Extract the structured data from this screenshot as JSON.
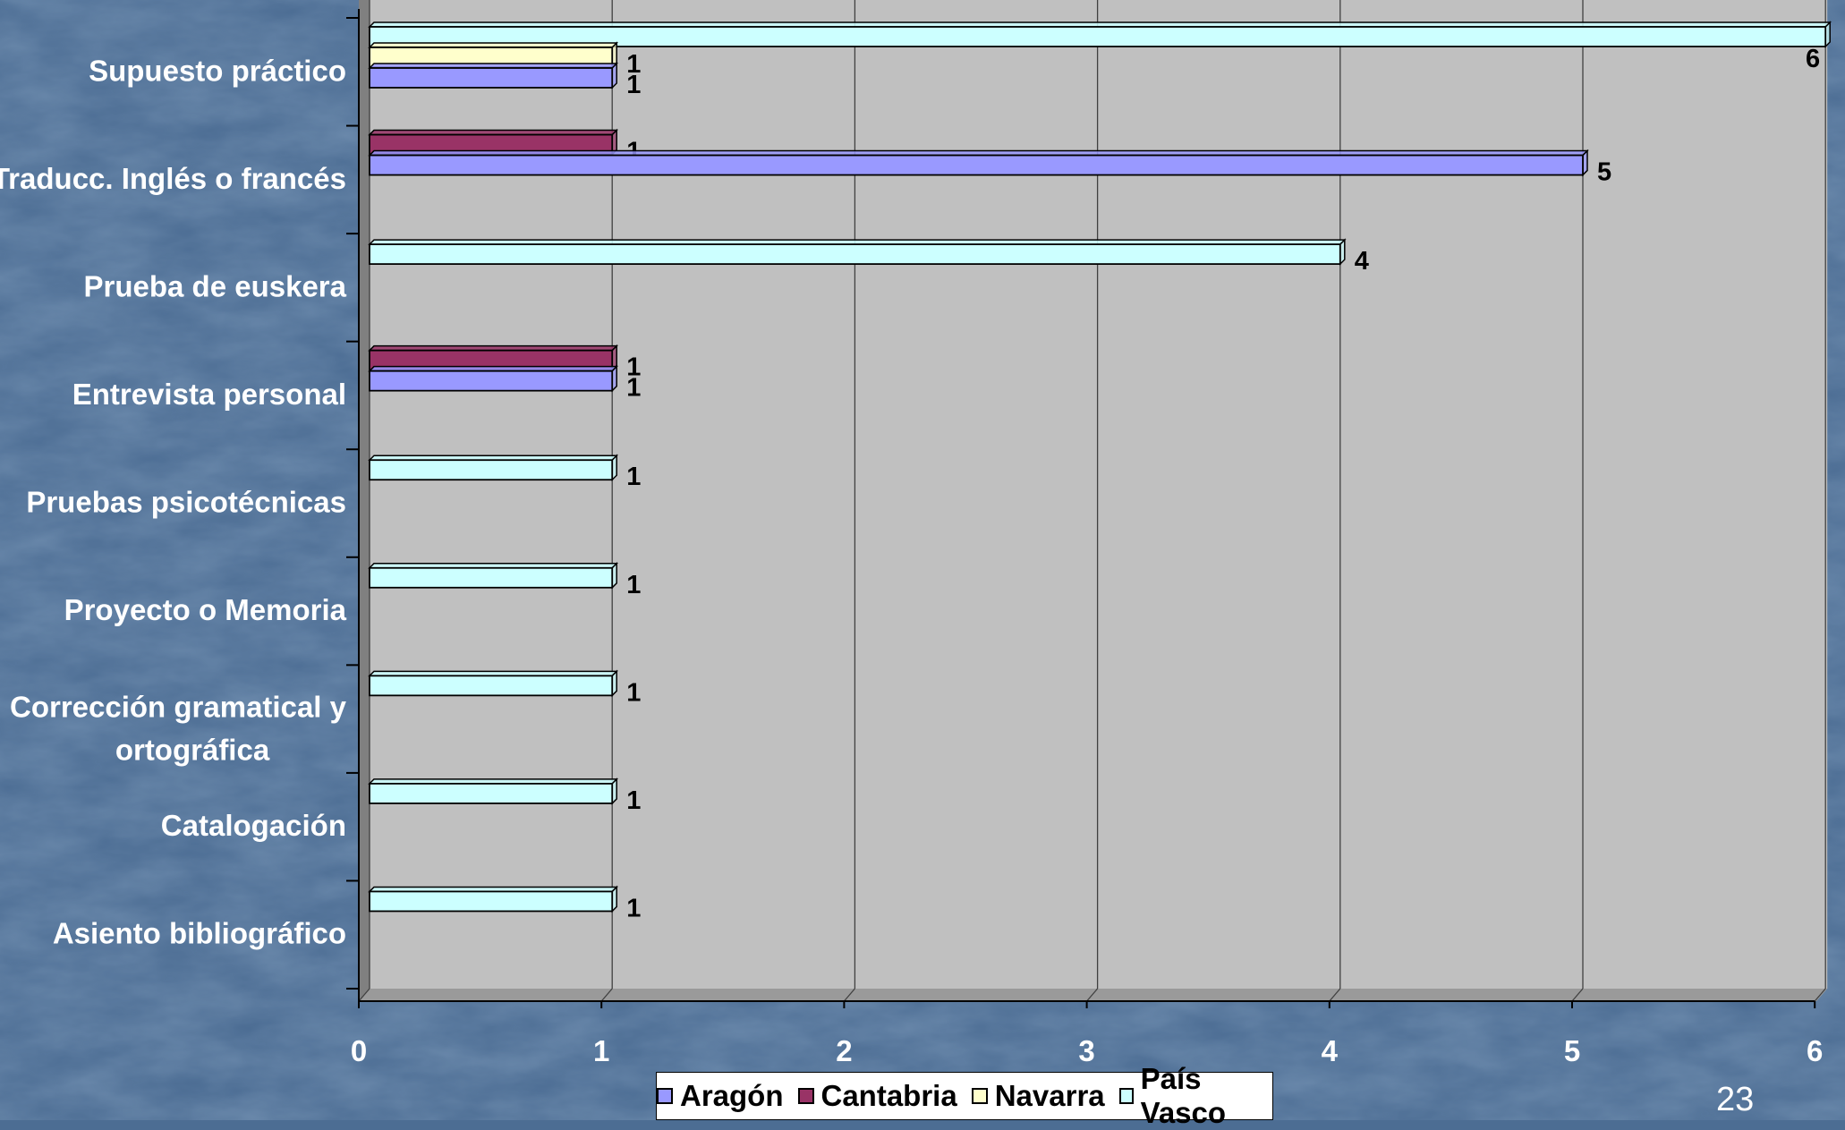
{
  "slide": {
    "page_number": "23"
  },
  "colors": {
    "background": "#4c6d93",
    "plot_wall": "#c0c0c0",
    "plot_side": "#808080",
    "gridline": "#404040",
    "label_text": "#ffffff",
    "value_text": "#000000"
  },
  "chart_data": {
    "type": "bar",
    "orientation": "horizontal",
    "style": "3d-clustered",
    "categories": [
      "Supuesto práctico",
      "Traducc. Inglés o francés",
      "Prueba de euskera",
      "Entrevista personal",
      "Pruebas psicotécnicas",
      "Proyecto o Memoria",
      "Corrección gramatical y ortográfica",
      "Catalogación",
      "Asiento bibliográfico"
    ],
    "series": [
      {
        "name": "Aragón",
        "color": "#9999ff",
        "values": [
          1,
          5,
          null,
          1,
          null,
          null,
          null,
          null,
          null
        ]
      },
      {
        "name": "Cantabria",
        "color": "#993366",
        "values": [
          null,
          1,
          null,
          1,
          null,
          null,
          null,
          null,
          null
        ]
      },
      {
        "name": "Navarra",
        "color": "#ffffcc",
        "values": [
          1,
          null,
          null,
          null,
          null,
          null,
          null,
          null,
          null
        ]
      },
      {
        "name": "País Vasco",
        "color": "#ccffff",
        "values": [
          6,
          null,
          4,
          null,
          1,
          1,
          1,
          1,
          1
        ]
      }
    ],
    "xlim": [
      0,
      6
    ],
    "xticks": [
      "0",
      "1",
      "2",
      "3",
      "4",
      "5",
      "6"
    ],
    "grid": true,
    "legend_position": "bottom",
    "data_labels": true
  }
}
